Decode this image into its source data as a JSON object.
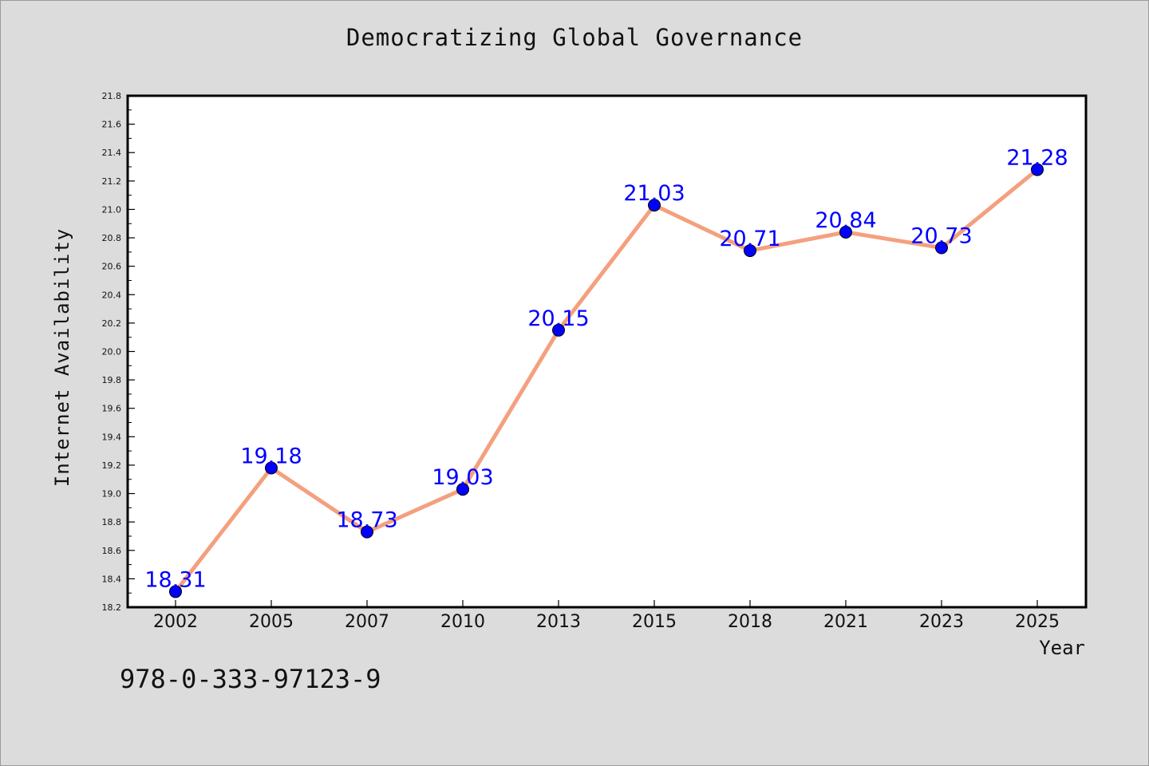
{
  "chart_data": {
    "type": "line",
    "title": "Democratizing Global Governance",
    "xlabel": "Year",
    "ylabel": "Internet Availability",
    "categories": [
      "2002",
      "2005",
      "2007",
      "2010",
      "2013",
      "2015",
      "2018",
      "2021",
      "2023",
      "2025"
    ],
    "values": [
      18.31,
      19.18,
      18.73,
      19.03,
      20.15,
      21.03,
      20.71,
      20.84,
      20.73,
      21.28
    ],
    "data_labels": [
      "18.31",
      "19.18",
      "18.73",
      "19.03",
      "20.15",
      "21.03",
      "20.71",
      "20.84",
      "20.73",
      "21.28"
    ],
    "ylim": [
      18.2,
      21.8
    ],
    "yticks": [
      "18.2",
      "18.4",
      "18.6",
      "18.8",
      "19.0",
      "19.2",
      "19.4",
      "19.6",
      "19.8",
      "20.0",
      "20.2",
      "20.4",
      "20.6",
      "20.8",
      "21.0",
      "21.2",
      "21.4",
      "21.6",
      "21.8"
    ],
    "grid": false,
    "legend": "none",
    "line_color": "#f4a07f",
    "marker_color": "#0000ff",
    "label_color": "#0000ff"
  },
  "footer": {
    "isbn": "978-0-333-97123-9"
  }
}
